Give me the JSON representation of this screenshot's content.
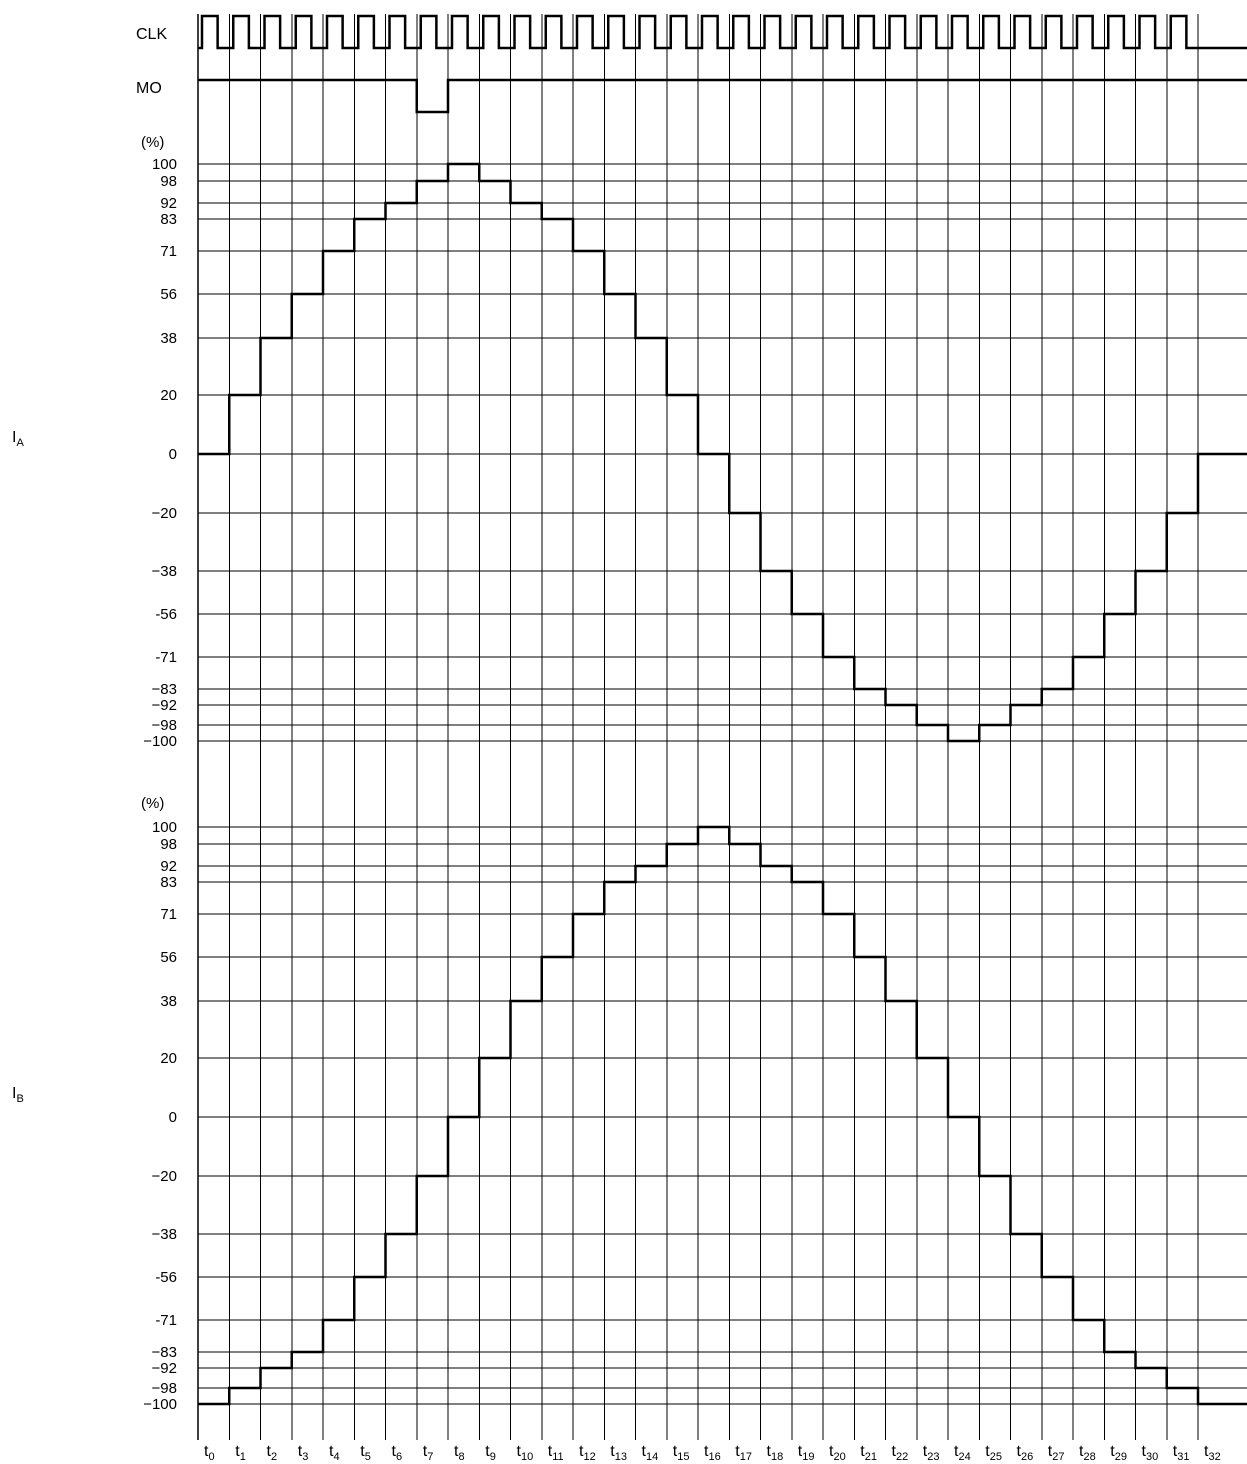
{
  "signals": {
    "clk": "CLK",
    "mo": "MO",
    "ia": {
      "main": "I",
      "sub": "A"
    },
    "ib": {
      "main": "I",
      "sub": "B"
    }
  },
  "unit_label": "(%)",
  "levels": [
    100,
    98,
    92,
    83,
    71,
    56,
    38,
    20,
    0,
    -20,
    -38,
    -56,
    -71,
    -83,
    -92,
    -98,
    -100
  ],
  "level_labels": [
    "100",
    "98",
    "92",
    "83",
    "71",
    "56",
    "38",
    "20",
    "0",
    "−20",
    "−38",
    "-56",
    "-71",
    "−83",
    "−92",
    "−98",
    "−100"
  ],
  "time_labels": [
    {
      "main": "t",
      "sub": "0"
    },
    {
      "main": "t",
      "sub": "1"
    },
    {
      "main": "t",
      "sub": "2"
    },
    {
      "main": "t",
      "sub": "3"
    },
    {
      "main": "t",
      "sub": "4"
    },
    {
      "main": "t",
      "sub": "5"
    },
    {
      "main": "t",
      "sub": "6"
    },
    {
      "main": "t",
      "sub": "7"
    },
    {
      "main": "t",
      "sub": "8"
    },
    {
      "main": "t",
      "sub": "9"
    },
    {
      "main": "t",
      "sub": "10"
    },
    {
      "main": "t",
      "sub": "11"
    },
    {
      "main": "t",
      "sub": "12"
    },
    {
      "main": "t",
      "sub": "13"
    },
    {
      "main": "t",
      "sub": "14"
    },
    {
      "main": "t",
      "sub": "15"
    },
    {
      "main": "t",
      "sub": "16"
    },
    {
      "main": "t",
      "sub": "17"
    },
    {
      "main": "t",
      "sub": "18"
    },
    {
      "main": "t",
      "sub": "19"
    },
    {
      "main": "t",
      "sub": "20"
    },
    {
      "main": "t",
      "sub": "21"
    },
    {
      "main": "t",
      "sub": "22"
    },
    {
      "main": "t",
      "sub": "23"
    },
    {
      "main": "t",
      "sub": "24"
    },
    {
      "main": "t",
      "sub": "25"
    },
    {
      "main": "t",
      "sub": "26"
    },
    {
      "main": "t",
      "sub": "27"
    },
    {
      "main": "t",
      "sub": "28"
    },
    {
      "main": "t",
      "sub": "29"
    },
    {
      "main": "t",
      "sub": "30"
    },
    {
      "main": "t",
      "sub": "31"
    },
    {
      "main": "t",
      "sub": "32"
    }
  ],
  "clk_pulses": 32,
  "mo_low_interval": [
    7,
    8
  ],
  "ia_steps": [
    0,
    20,
    38,
    56,
    71,
    83,
    92,
    98,
    100,
    98,
    92,
    83,
    71,
    56,
    38,
    20,
    0,
    -20,
    -38,
    -56,
    -71,
    -83,
    -92,
    -98,
    -100,
    -98,
    -92,
    -83,
    -71,
    -56,
    -38,
    -20,
    0
  ],
  "ib_steps": [
    -100,
    -98,
    -92,
    -83,
    -71,
    -56,
    -38,
    -20,
    0,
    20,
    38,
    56,
    71,
    83,
    92,
    98,
    100,
    98,
    92,
    83,
    71,
    56,
    38,
    20,
    0,
    -20,
    -38,
    -56,
    -71,
    -83,
    -92,
    -98,
    -100
  ]
}
